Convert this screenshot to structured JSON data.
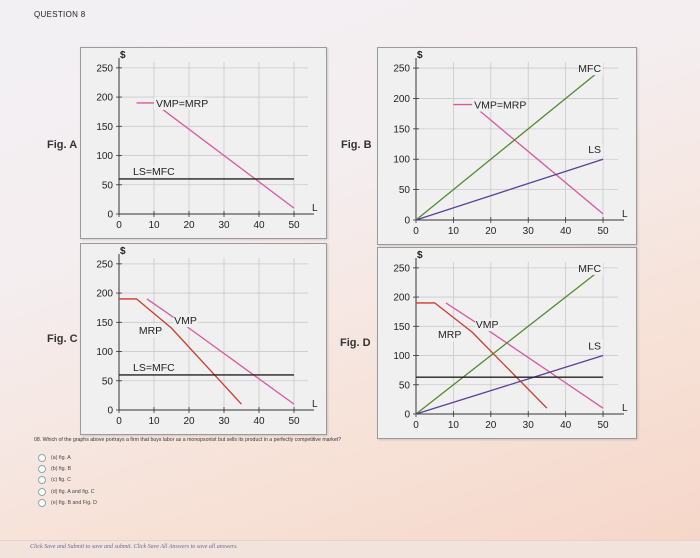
{
  "question_title": "QUESTION 8",
  "prompt": "08. Which of the graphs above portrays a firm that buys labor as a monopsonist but sells its product in a perfectly competitive market?",
  "options": [
    "(a) fig. A",
    "(b) fig. B",
    "(c) fig. C",
    "(d) fig. A and fig. C",
    "(e) fig. B and Fig. D"
  ],
  "footer": "Click Save and Submit to save and submit. Click Save All Answers to save all answers.",
  "colors": {
    "pink": "#d9589a",
    "red": "#cc3b2a",
    "green": "#4e8a2e",
    "purple": "#5a3f9a",
    "black": "#222222"
  },
  "chart_data": [
    {
      "type": "line",
      "fig_label": "Fig. A",
      "y_unit": "$",
      "x_end_label": "L",
      "x_ticks": [
        0,
        10,
        20,
        30,
        40,
        50
      ],
      "y_ticks": [
        0,
        50,
        100,
        150,
        200,
        250
      ],
      "xlim": [
        0,
        54
      ],
      "ylim": [
        0,
        260
      ],
      "series": [
        {
          "name": "VMP=MRP",
          "color": "pink",
          "points": [
            [
              5,
              190
            ],
            [
              10,
              190
            ],
            [
              50,
              10
            ]
          ]
        },
        {
          "name": "LS=MFC",
          "color": "black",
          "points": [
            [
              0,
              60
            ],
            [
              50,
              60
            ]
          ]
        }
      ]
    },
    {
      "type": "line",
      "fig_label": "Fig. B",
      "y_unit": "$",
      "x_end_label": "L",
      "x_ticks": [
        0,
        10,
        20,
        30,
        40,
        50
      ],
      "y_ticks": [
        0,
        50,
        100,
        150,
        200,
        250
      ],
      "xlim": [
        0,
        54
      ],
      "ylim": [
        0,
        260
      ],
      "series": [
        {
          "name": "VMP=MRP",
          "color": "pink",
          "points": [
            [
              10,
              190
            ],
            [
              15,
              190
            ],
            [
              50,
              10
            ]
          ]
        },
        {
          "name": "MFC",
          "color": "green",
          "points": [
            [
              0,
              0
            ],
            [
              50,
              250
            ]
          ]
        },
        {
          "name": "LS",
          "color": "purple",
          "points": [
            [
              0,
              0
            ],
            [
              50,
              100
            ]
          ]
        }
      ]
    },
    {
      "type": "line",
      "fig_label": "Fig. C",
      "y_unit": "$",
      "x_end_label": "L",
      "x_ticks": [
        0,
        10,
        20,
        30,
        40,
        50
      ],
      "y_ticks": [
        0,
        50,
        100,
        150,
        200,
        250
      ],
      "xlim": [
        0,
        54
      ],
      "ylim": [
        0,
        260
      ],
      "series": [
        {
          "name": "MRP",
          "color": "red",
          "points": [
            [
              0,
              190
            ],
            [
              5,
              190
            ],
            [
              15,
              140
            ],
            [
              35,
              10
            ]
          ]
        },
        {
          "name": "VMP",
          "color": "pink",
          "points": [
            [
              8,
              190
            ],
            [
              20,
              140
            ],
            [
              50,
              10
            ]
          ]
        },
        {
          "name": "LS=MFC",
          "color": "black",
          "points": [
            [
              0,
              60
            ],
            [
              50,
              60
            ]
          ]
        }
      ]
    },
    {
      "type": "line",
      "fig_label": "Fig. D",
      "y_unit": "$",
      "x_end_label": "L",
      "x_ticks": [
        0,
        10,
        20,
        30,
        40,
        50
      ],
      "y_ticks": [
        0,
        50,
        100,
        150,
        200,
        250
      ],
      "xlim": [
        0,
        54
      ],
      "ylim": [
        0,
        260
      ],
      "series": [
        {
          "name": "MRP",
          "color": "red",
          "points": [
            [
              0,
              190
            ],
            [
              5,
              190
            ],
            [
              15,
              140
            ],
            [
              35,
              10
            ]
          ]
        },
        {
          "name": "VMP",
          "color": "pink",
          "points": [
            [
              8,
              190
            ],
            [
              20,
              140
            ],
            [
              50,
              10
            ]
          ]
        },
        {
          "name": "MFC",
          "color": "green",
          "points": [
            [
              0,
              0
            ],
            [
              50,
              250
            ]
          ]
        },
        {
          "name": "LS",
          "color": "purple",
          "points": [
            [
              0,
              0
            ],
            [
              50,
              100
            ]
          ]
        },
        {
          "name": "",
          "color": "black",
          "points": [
            [
              0,
              63
            ],
            [
              50,
              63
            ]
          ]
        }
      ]
    }
  ]
}
